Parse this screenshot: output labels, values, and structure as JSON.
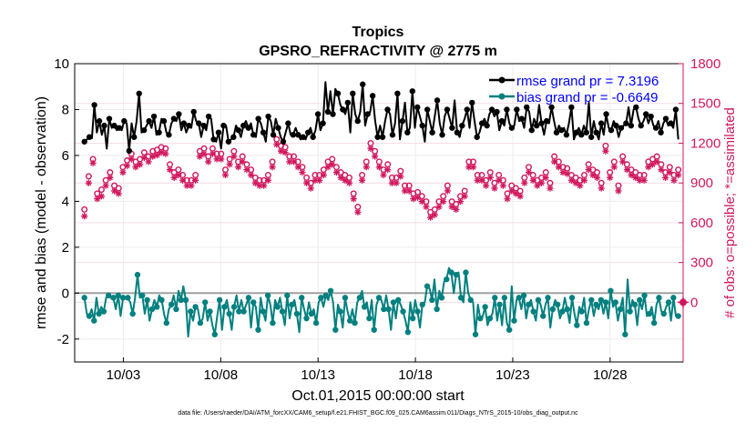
{
  "figure": {
    "title": "Tropics",
    "subtitle": "GPSRO_REFRACTIVITY @ 2775 m",
    "footer": "data file: /Users/raeder/DAI/ATM_forcXX/CAM6_setup/f.e21.FHIST_BGC.f09_025.CAM6assim.011/Diags_NTrS_2015-10/obs_diag_output.nc"
  },
  "chart_data": {
    "type": "line",
    "title": "Tropics",
    "subtitle": "GPSRO_REFRACTIVITY @ 2775 m",
    "xlabel": "Oct.01,2015 00:00:00 start",
    "ylabel": "rmse and bias (model - observation)",
    "y2label": "# of obs: o=possible; *=assimilated",
    "xlim": [
      0.5,
      31.75
    ],
    "ylim": [
      -3,
      10
    ],
    "y2lim": [
      -450,
      1800
    ],
    "xticks": [
      3,
      8,
      13,
      18,
      23,
      28
    ],
    "xtick_labels": [
      "10/03",
      "10/08",
      "10/13",
      "10/18",
      "10/23",
      "10/28"
    ],
    "yticks": [
      -2,
      0,
      2,
      4,
      6,
      8,
      10
    ],
    "y2ticks": [
      0,
      300,
      600,
      900,
      1200,
      1500,
      1800
    ],
    "grid": true,
    "legend_position": "top-right",
    "colors": {
      "rmse": "#000000",
      "bias": "#00807f",
      "obs": "#d1175e",
      "legend_text": "#0000ff",
      "zero_line": "#a0a0a0"
    },
    "series": [
      {
        "name": "rmse grand pr = 7.3196",
        "color": "#000000",
        "marker": "filled-circle",
        "values": [
          6.6,
          6.7,
          6.8,
          6.75,
          8.2,
          7.0,
          7.5,
          6.9,
          7.3,
          6.3,
          7.6,
          7.2,
          7.3,
          7.1,
          7.2,
          7.1,
          7.5,
          7.4,
          6.2,
          7.4,
          6.8,
          7.5,
          8.7,
          7.0,
          7.1,
          7.3,
          7.5,
          7.2,
          7.7,
          6.9,
          7.0,
          7.6,
          7.5,
          7.0,
          6.9,
          7.4,
          7.6,
          7.5,
          7.8,
          7.1,
          7.4,
          7.0,
          7.3,
          7.2,
          7.9,
          7.5,
          7.4,
          6.8,
          7.3,
          7.1,
          7.7,
          7.6,
          6.7,
          6.6,
          7.0,
          6.3,
          7.3,
          7.3,
          6.6,
          6.7,
          6.8,
          7.3,
          7.1,
          6.8,
          7.3,
          7.5,
          7.2,
          7.4,
          6.9,
          6.8,
          7.6,
          7.4,
          7.0,
          6.6,
          7.7,
          7.5,
          6.9,
          7.6,
          7.2,
          6.8,
          6.6,
          7.0,
          7.4,
          6.9,
          6.9,
          7.2,
          6.9,
          6.7,
          6.8,
          6.7,
          7.0,
          7.2,
          6.8,
          7.1,
          7.8,
          7.1,
          7.4,
          9.2,
          7.9,
          8.8,
          7.8,
          8.9,
          8.7,
          8.2,
          8.0,
          7.8,
          8.3,
          7.0,
          8.7,
          7.8,
          7.5,
          7.9,
          9.1,
          7.3,
          7.8,
          7.9,
          8.6,
          7.5,
          6.8,
          7.3,
          6.8,
          7.5,
          8.0,
          7.8,
          6.9,
          7.4,
          8.7,
          6.7,
          7.5,
          8.3,
          7.0,
          7.2,
          8.8,
          7.2,
          8.1,
          7.7,
          7.3,
          6.6,
          8.0,
          7.5,
          7.0,
          7.7,
          8.4,
          7.4,
          6.9,
          7.7,
          8.0,
          7.6,
          7.2,
          8.4,
          7.0,
          6.8,
          7.3,
          7.6,
          8.0,
          7.2,
          8.3,
          7.5,
          6.8,
          7.0,
          7.4,
          7.6,
          7.3,
          7.8,
          8.0,
          7.7,
          7.9,
          7.1,
          7.5,
          7.3,
          8.0,
          7.4,
          7.2,
          7.3,
          8.0,
          7.5,
          7.6,
          7.2,
          8.1,
          7.9,
          7.1,
          7.6,
          7.3,
          8.2,
          7.4,
          6.9,
          7.5,
          7.4,
          8.1,
          7.5,
          7.0,
          7.3,
          7.1,
          7.2,
          6.9,
          7.4,
          8.1,
          6.7,
          7.0,
          7.2,
          6.9,
          7.3,
          7.0,
          8.3,
          6.8,
          7.5,
          7.0,
          6.7,
          7.4,
          6.9,
          7.8,
          7.2,
          7.1,
          7.5,
          7.3,
          6.8,
          7.2,
          7.3,
          7.4,
          8.1,
          7.3,
          8.0,
          8.1,
          7.6,
          7.3,
          7.5,
          7.8,
          7.4,
          7.7,
          7.3,
          7.2,
          7.5,
          7.0,
          7.4,
          7.6,
          7.3,
          7.4,
          7.2,
          8.0,
          6.7
        ]
      },
      {
        "name": "bias grand pr = -0.6649",
        "color": "#00807f",
        "marker": "filled-circle",
        "values": [
          -0.2,
          -0.9,
          -1.0,
          -0.7,
          -1.2,
          -0.2,
          -0.9,
          -0.6,
          -0.8,
          -0.2,
          -0.1,
          -0.2,
          -0.2,
          -0.7,
          -0.1,
          -1.0,
          -0.2,
          -0.2,
          -0.2,
          -0.4,
          -0.9,
          -0.2,
          0.8,
          -0.2,
          -0.1,
          -0.9,
          -0.3,
          -1.2,
          -0.7,
          -0.3,
          -0.6,
          -0.1,
          -0.3,
          -0.9,
          -1.3,
          -0.7,
          -0.5,
          -0.1,
          -0.7,
          0.1,
          -0.3,
          0.3,
          -0.3,
          -1.9,
          -0.8,
          -1.2,
          -0.6,
          -0.7,
          -1.3,
          -1.1,
          -0.4,
          -1.2,
          -0.8,
          -1.4,
          -1.8,
          -1.0,
          -0.3,
          -1.6,
          -0.6,
          -0.3,
          -0.9,
          -1.6,
          -0.6,
          -0.1,
          -0.8,
          -0.3,
          -0.8,
          -0.5,
          -0.2,
          -1.5,
          -0.4,
          -0.6,
          -1.6,
          -0.2,
          -0.8,
          -1.2,
          -0.1,
          -0.5,
          -1.3,
          -0.3,
          -0.6,
          -0.2,
          -0.8,
          -1.4,
          -0.1,
          -1.1,
          -0.5,
          -0.3,
          -0.9,
          -1.7,
          -0.2,
          -0.7,
          -1.1,
          -0.4,
          -0.9,
          -0.7,
          -1.3,
          -0.4,
          -0.2,
          -0.6,
          -0.1,
          -0.3,
          0.1,
          -0.4,
          -1.6,
          -0.5,
          -0.8,
          -1.5,
          -0.2,
          -0.8,
          -1.2,
          -0.7,
          -1.3,
          -0.4,
          -0.2,
          0.1,
          -0.6,
          -0.4,
          -1.1,
          -0.3,
          -1.6,
          -0.5,
          -0.2,
          -0.3,
          -0.7,
          -0.1,
          -0.7,
          -1.6,
          -0.4,
          -1.1,
          -0.3,
          -0.5,
          -0.8,
          -1.2,
          -1.7,
          -0.4,
          -1.1,
          -0.3,
          -0.8,
          -1.5,
          -0.5,
          -0.4,
          0.3,
          0.2,
          -0.3,
          0.6,
          -0.7,
          0.1,
          -0.2,
          0.5,
          0.6,
          1.1,
          0.9,
          0.0,
          0.8,
          0.9,
          -0.2,
          -0.4,
          0.9,
          0.0,
          -0.3,
          -0.4,
          -1.8,
          -0.5,
          -1.1,
          -1.0,
          -0.6,
          -1.4,
          -1.1,
          -0.9,
          -0.2,
          -1.2,
          -0.5,
          -1.4,
          -0.2,
          -1.3,
          -1.6,
          0.3,
          -1.2,
          -0.3,
          -0.2,
          -0.7,
          -0.1,
          -1.1,
          -0.5,
          -0.3,
          -0.8,
          -1.2,
          -0.3,
          -0.5,
          -1.0,
          -0.5,
          -0.2,
          -1.5,
          -0.7,
          -0.3,
          -0.5,
          -1.1,
          -0.8,
          -0.2,
          -0.7,
          -1.3,
          -0.2,
          -0.9,
          -1.4,
          -0.6,
          -0.8,
          -0.2,
          -1.3,
          -0.7,
          -0.3,
          -1.0,
          -0.5,
          -0.7,
          -0.3,
          -0.9,
          -0.4,
          -1.1,
          0.1,
          -0.6,
          -0.4,
          -1.2,
          -0.7,
          -0.2,
          -1.8,
          0.6,
          -0.8,
          -0.3,
          -0.5,
          -1.4,
          -0.3,
          -0.7,
          -0.1,
          -1.0,
          -0.9,
          -0.6,
          -1.3,
          -0.5,
          -0.2,
          -0.8,
          -0.9,
          -0.6,
          -0.4,
          -1.2,
          -0.2,
          -1.0,
          -1.0
        ]
      },
      {
        "name": "# of obs possible",
        "axis": "right",
        "color": "#d1175e",
        "marker": "open-circle",
        "values": [
          700,
          950,
          1080,
          820,
          850,
          920,
          980,
          880,
          860,
          1020,
          1070,
          1120,
          1060,
          1080,
          1130,
          1100,
          1140,
          1150,
          1170,
          1160,
          1040,
          980,
          1000,
          960,
          920,
          920,
          960,
          1140,
          1160,
          1100,
          1160,
          1120,
          1120,
          1000,
          1080,
          1140,
          1060,
          1100,
          1040,
          1000,
          940,
          920,
          920,
          960,
          1060,
          1230,
          1180,
          1170,
          1100,
          1100,
          1060,
          1020,
          940,
          900,
          960,
          960,
          1000,
          1060,
          1080,
          1020,
          980,
          960,
          940,
          820,
          720,
          960,
          1060,
          1200,
          1140,
          1060,
          1000,
          1040,
          940,
          940,
          990,
          880,
          880,
          820,
          830,
          800,
          760,
          680,
          700,
          760,
          800,
          880,
          760,
          740,
          800,
          840,
          1060,
          1060,
          960,
          960,
          920,
          980,
          900,
          960,
          920,
          820,
          880,
          860,
          840,
          940,
          1020,
          960,
          920,
          940,
          980,
          900,
          1100,
          1060,
          1020,
          1010,
          960,
          940,
          920,
          960,
          1040,
          1000,
          980,
          900,
          1180,
          980,
          1060,
          880,
          1100,
          1040,
          1000,
          980,
          960,
          960,
          1060,
          1080,
          1100,
          1040,
          980,
          1020,
          960,
          1000
        ]
      },
      {
        "name": "# of obs assimilated",
        "axis": "right",
        "color": "#d1175e",
        "marker": "asterisk",
        "values": [
          650,
          900,
          1050,
          780,
          800,
          880,
          940,
          840,
          820,
          980,
          1030,
          1080,
          1020,
          1040,
          1090,
          1060,
          1100,
          1110,
          1130,
          1120,
          1000,
          940,
          960,
          920,
          880,
          880,
          920,
          1100,
          1120,
          1060,
          1120,
          1080,
          1080,
          960,
          1040,
          1100,
          1020,
          1060,
          1000,
          960,
          900,
          880,
          880,
          920,
          1020,
          1190,
          1140,
          1130,
          1060,
          1060,
          1020,
          980,
          900,
          860,
          920,
          920,
          960,
          1020,
          1040,
          980,
          940,
          920,
          900,
          780,
          680,
          920,
          1020,
          1160,
          1100,
          1020,
          960,
          1000,
          900,
          900,
          950,
          840,
          840,
          780,
          790,
          760,
          720,
          640,
          660,
          720,
          760,
          840,
          720,
          700,
          760,
          800,
          1020,
          1020,
          920,
          920,
          880,
          940,
          860,
          920,
          880,
          780,
          840,
          820,
          800,
          900,
          980,
          920,
          880,
          900,
          940,
          860,
          1060,
          1020,
          980,
          970,
          920,
          900,
          880,
          920,
          1000,
          960,
          940,
          860,
          1140,
          940,
          1020,
          840,
          1060,
          1000,
          960,
          940,
          920,
          920,
          1020,
          1040,
          1060,
          1000,
          940,
          980,
          920,
          960
        ]
      }
    ],
    "legend": [
      {
        "label": "rmse grand pr = 7.3196",
        "color": "#000000"
      },
      {
        "label": "bias grand pr = -0.6649",
        "color": "#00807f"
      }
    ],
    "extra_point": {
      "x": 31.75,
      "y2": 0,
      "color": "#d1175e"
    }
  }
}
